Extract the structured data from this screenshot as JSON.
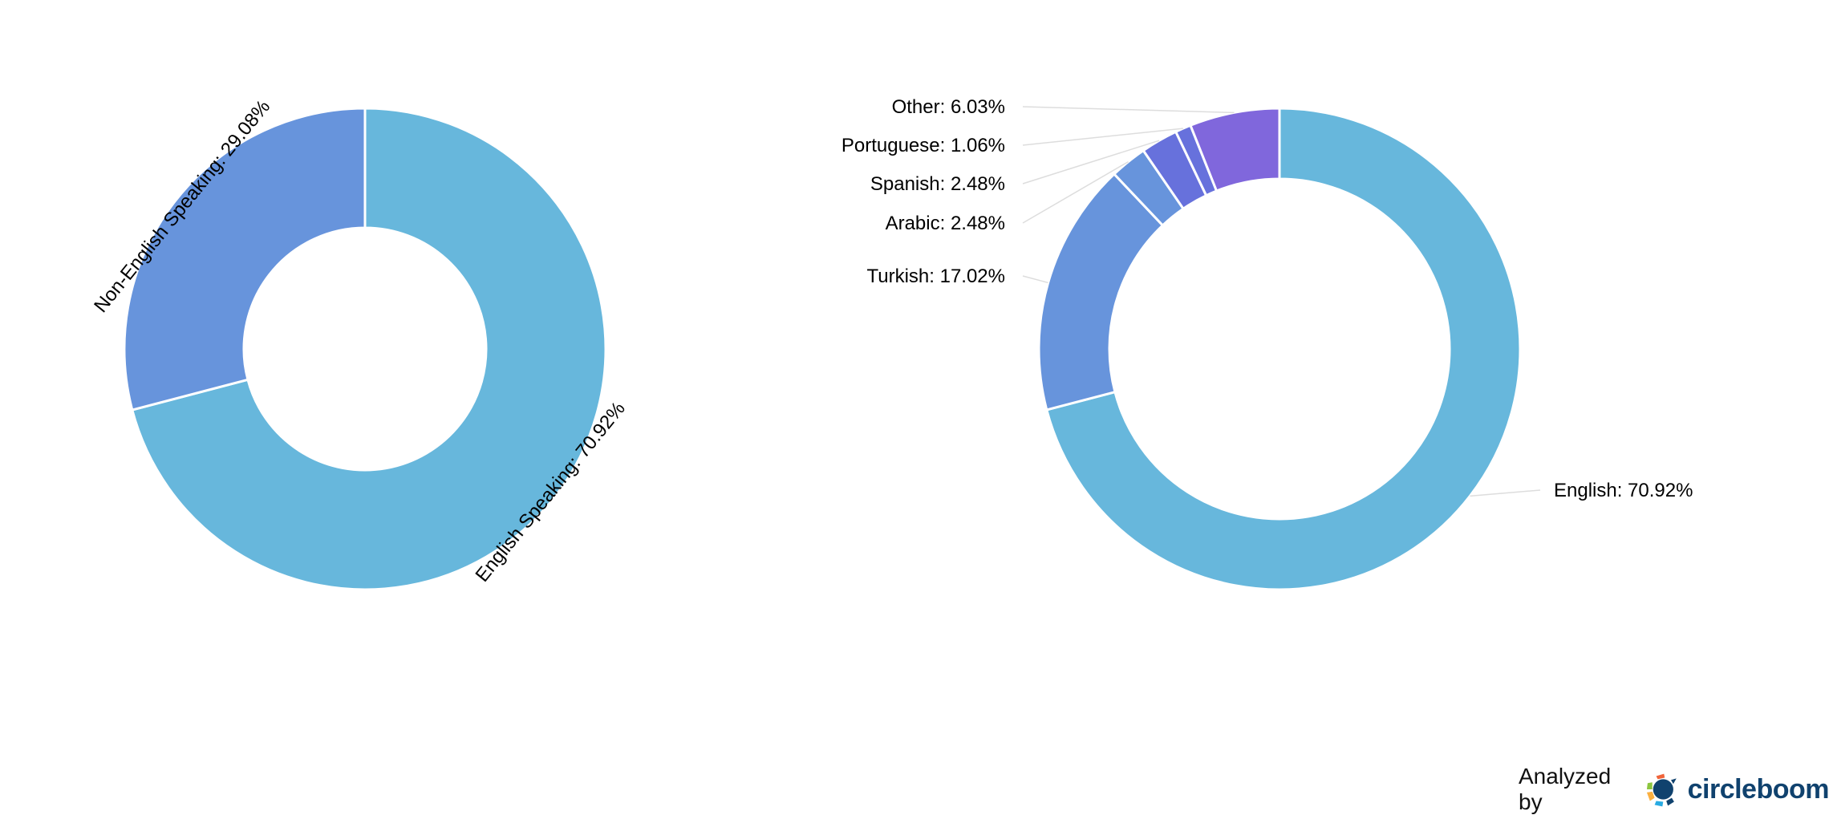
{
  "chart_data": [
    {
      "type": "pie",
      "donut": true,
      "categories": [
        "English Speaking",
        "Non-English Speaking"
      ],
      "values": [
        70.92,
        29.08
      ],
      "labels": [
        "English Speaking: 70.92%",
        "Non-English Speaking: 29.08%"
      ],
      "colors": [
        "#67b7dc",
        "#6794dc"
      ]
    },
    {
      "type": "pie",
      "donut": true,
      "categories": [
        "English",
        "Turkish",
        "Arabic",
        "Spanish",
        "Portuguese",
        "Other"
      ],
      "values": [
        70.92,
        17.02,
        2.48,
        2.48,
        1.06,
        6.03
      ],
      "labels": [
        "English: 70.92%",
        "Turkish: 17.02%",
        "Arabic: 2.48%",
        "Spanish: 2.48%",
        "Portuguese: 1.06%",
        "Other: 6.03%"
      ],
      "colors": [
        "#67b7dc",
        "#6794dc",
        "#6794dc",
        "#6771dc",
        "#6771dc",
        "#8067dc"
      ]
    }
  ],
  "footer": {
    "analyzed_by": "Analyzed by",
    "brand": "circleboom",
    "brand_color": "#10426e"
  }
}
